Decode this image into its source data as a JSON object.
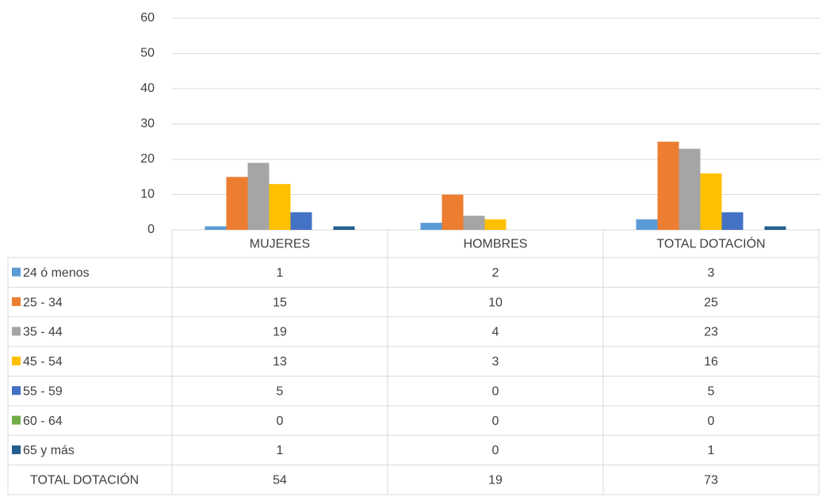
{
  "chart_data": {
    "type": "bar",
    "categories": [
      "MUJERES",
      "HOMBRES",
      "TOTAL DOTACIÓN"
    ],
    "series": [
      {
        "name": "24 ó menos",
        "color": "#5b9bd5",
        "values": [
          1,
          2,
          3
        ]
      },
      {
        "name": "25 - 34",
        "color": "#ed7d31",
        "values": [
          15,
          10,
          25
        ]
      },
      {
        "name": "35 - 44",
        "color": "#a5a5a5",
        "values": [
          19,
          4,
          23
        ]
      },
      {
        "name": "45 - 54",
        "color": "#ffc000",
        "values": [
          13,
          3,
          16
        ]
      },
      {
        "name": "55 - 59",
        "color": "#4472c4",
        "values": [
          5,
          0,
          5
        ]
      },
      {
        "name": "60 - 64",
        "color": "#70ad47",
        "values": [
          0,
          0,
          0
        ]
      },
      {
        "name": "65 y más",
        "color": "#255e91",
        "values": [
          1,
          0,
          1
        ]
      }
    ],
    "totals": {
      "name": "TOTAL DOTACIÓN",
      "values": [
        54,
        19,
        73
      ]
    },
    "ylim": [
      0,
      60
    ],
    "yticks": [
      0,
      10,
      20,
      30,
      40,
      50,
      60
    ],
    "grid": true
  }
}
